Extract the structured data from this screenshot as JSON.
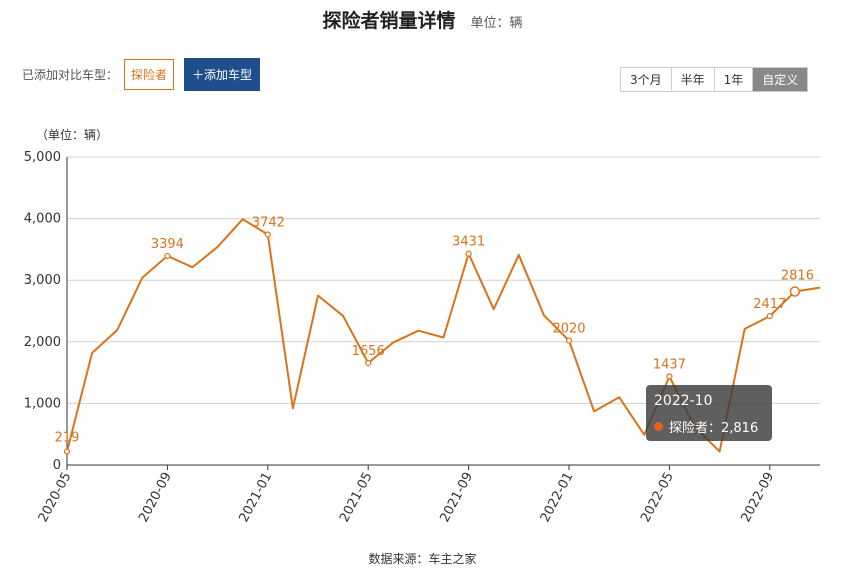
{
  "header": {
    "title": "探险者销量详情",
    "unit": "单位：辆"
  },
  "compare": {
    "label": "已添加对比车型：",
    "model": "探险者",
    "add_label": "＋添加车型"
  },
  "ranges": [
    "3个月",
    "半年",
    "1年",
    "自定义"
  ],
  "active_range": "自定义",
  "axis_unit": "（单位：辆）",
  "source": "数据来源：车主之家",
  "tooltip": {
    "date": "2022-10",
    "label": "探险者：2,816"
  },
  "colors": {
    "line": "#d9731c",
    "tooltip_dot": "#e8621f",
    "add_button": "#1f4e8c"
  },
  "chart_data": {
    "type": "line",
    "x": [
      "2020-05",
      "2020-06",
      "2020-07",
      "2020-08",
      "2020-09",
      "2020-10",
      "2020-11",
      "2020-12",
      "2021-01",
      "2021-02",
      "2021-03",
      "2021-04",
      "2021-05",
      "2021-06",
      "2021-07",
      "2021-08",
      "2021-09",
      "2021-10",
      "2021-11",
      "2021-12",
      "2022-01",
      "2022-02",
      "2022-03",
      "2022-04",
      "2022-05",
      "2022-06",
      "2022-07",
      "2022-08",
      "2022-09",
      "2022-10",
      "2022-11"
    ],
    "series": [
      {
        "name": "探险者",
        "values": [
          219,
          1820,
          2190,
          3040,
          3394,
          3210,
          3540,
          3990,
          3742,
          920,
          2750,
          2420,
          1656,
          1990,
          2180,
          2070,
          3431,
          2530,
          3410,
          2430,
          2020,
          870,
          1100,
          490,
          1437,
          620,
          220,
          2210,
          2417,
          2816,
          2880
        ]
      }
    ],
    "labeled": [
      {
        "index": 0,
        "text": "219"
      },
      {
        "index": 4,
        "text": "3394"
      },
      {
        "index": 8,
        "text": "3742"
      },
      {
        "index": 12,
        "text": "1656"
      },
      {
        "index": 16,
        "text": "3431"
      },
      {
        "index": 20,
        "text": "2020"
      },
      {
        "index": 24,
        "text": "1437"
      },
      {
        "index": 28,
        "text": "2417"
      },
      {
        "index": 29,
        "text": "2816"
      }
    ],
    "y_ticks": [
      "0",
      "1,000",
      "2,000",
      "3,000",
      "4,000",
      "5,000"
    ],
    "x_ticks": [
      {
        "index": 0,
        "label": "2020-05"
      },
      {
        "index": 4,
        "label": "2020-09"
      },
      {
        "index": 8,
        "label": "2021-01"
      },
      {
        "index": 12,
        "label": "2021-05"
      },
      {
        "index": 16,
        "label": "2021-09"
      },
      {
        "index": 20,
        "label": "2022-01"
      },
      {
        "index": 24,
        "label": "2022-05"
      },
      {
        "index": 28,
        "label": "2022-09"
      }
    ],
    "ylim": [
      0,
      5000
    ],
    "grid": true
  }
}
